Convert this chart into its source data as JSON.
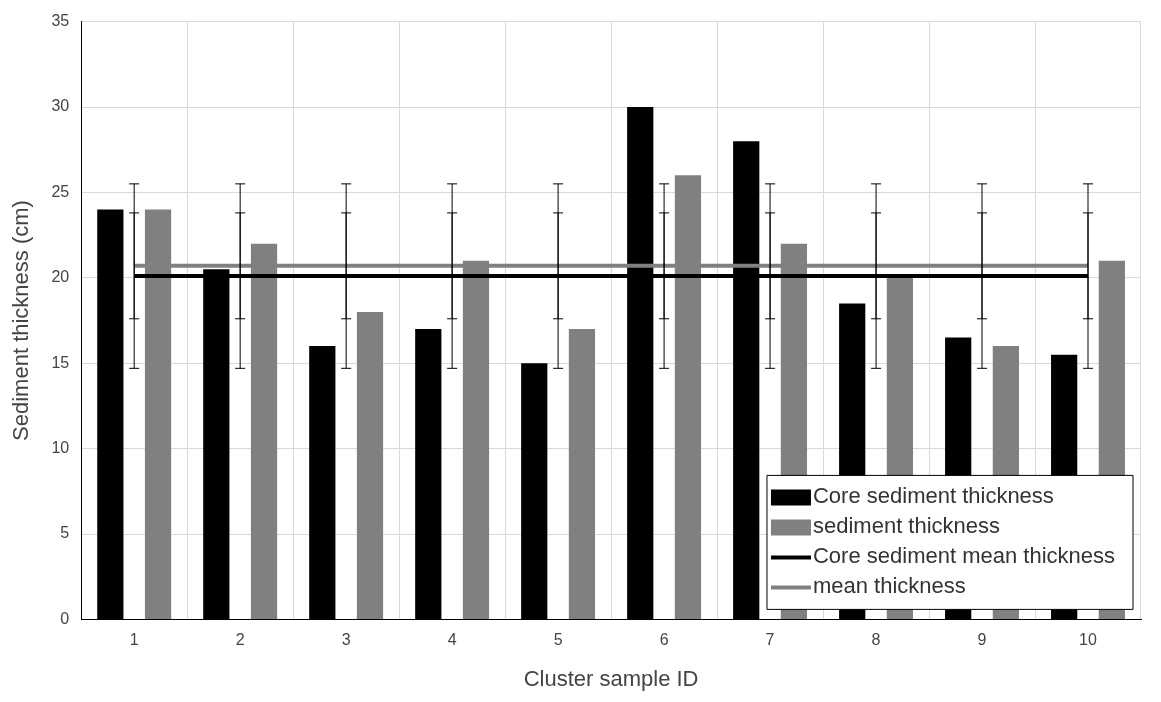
{
  "chart_data": {
    "type": "bar",
    "xlabel": "Cluster sample ID",
    "ylabel": "Sediment thickness (cm)",
    "categories": [
      "1",
      "2",
      "3",
      "4",
      "5",
      "6",
      "7",
      "8",
      "9",
      "10"
    ],
    "series": [
      {
        "name": "Core sediment thickness",
        "color": "#000000",
        "values": [
          24,
          20.5,
          16,
          17,
          15,
          30,
          28,
          18.5,
          16.5,
          15.5
        ]
      },
      {
        "name": "sediment thickness",
        "color": "#808080",
        "values": [
          24,
          22,
          18,
          21,
          17,
          26,
          22,
          20,
          16,
          21
        ]
      },
      {
        "type": "line",
        "name": "Core sediment mean thickness",
        "color": "#000000",
        "values": [
          20.1,
          20.1,
          20.1,
          20.1,
          20.1,
          20.1,
          20.1,
          20.1,
          20.1,
          20.1
        ],
        "errors": [
          5.4,
          5.4,
          5.4,
          5.4,
          5.4,
          5.4,
          5.4,
          5.4,
          5.4,
          5.4
        ]
      },
      {
        "type": "line",
        "name": "mean thickness",
        "color": "#808080",
        "values": [
          20.7,
          20.7,
          20.7,
          20.7,
          20.7,
          20.7,
          20.7,
          20.7,
          20.7,
          20.7
        ],
        "errors": [
          3.1,
          3.1,
          3.1,
          3.1,
          3.1,
          3.1,
          3.1,
          3.1,
          3.1,
          3.1
        ]
      }
    ],
    "ylim": [
      0,
      35
    ],
    "yticks": [
      0,
      5,
      10,
      15,
      20,
      25,
      30,
      35
    ],
    "grid": true,
    "legend": "bottom right",
    "marker": "none"
  }
}
